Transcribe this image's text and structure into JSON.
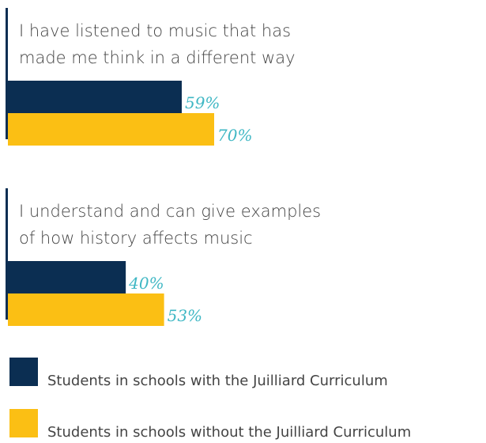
{
  "chart_data": {
    "type": "bar",
    "orientation": "horizontal",
    "value_suffix": "%",
    "groups": [
      {
        "question_lines": [
          "I have listened to music that has",
          "made me think in a different way"
        ],
        "values": [
          59,
          70
        ]
      },
      {
        "question_lines": [
          "I understand and can give examples",
          "of how history affects music"
        ],
        "values": [
          40,
          53
        ]
      }
    ],
    "series": [
      {
        "name": "Students in schools with the Juilliard Curriculum",
        "color": "#0b2e52"
      },
      {
        "name": "Students in schools without the Juilliard Curriculum",
        "color": "#fbbf14"
      }
    ],
    "xlim": [
      0,
      100
    ],
    "legend_position": "bottom"
  }
}
